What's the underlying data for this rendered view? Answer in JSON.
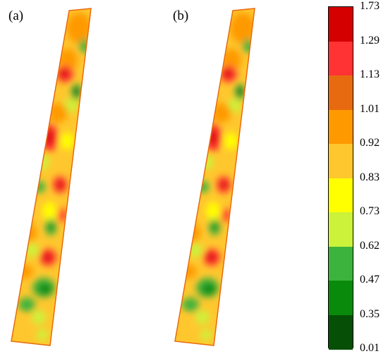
{
  "panels": [
    {
      "id": "a",
      "label": "(a)"
    },
    {
      "id": "b",
      "label": "(b)"
    }
  ],
  "legend": {
    "tick_labels": [
      "1.73",
      "1.29",
      "1.13",
      "1.01",
      "0.92",
      "0.83",
      "0.73",
      "0.62",
      "0.47",
      "0.35",
      "0.01"
    ],
    "classes": [
      {
        "from": 1.29,
        "to": 1.73,
        "color": "#d40000"
      },
      {
        "from": 1.13,
        "to": 1.29,
        "color": "#ff3333"
      },
      {
        "from": 1.01,
        "to": 1.13,
        "color": "#e86a10"
      },
      {
        "from": 0.92,
        "to": 1.01,
        "color": "#ff9900"
      },
      {
        "from": 0.83,
        "to": 0.92,
        "color": "#ffc72e"
      },
      {
        "from": 0.73,
        "to": 0.83,
        "color": "#ffff00"
      },
      {
        "from": 0.62,
        "to": 0.73,
        "color": "#ccf23a"
      },
      {
        "from": 0.47,
        "to": 0.62,
        "color": "#3cb33c"
      },
      {
        "from": 0.35,
        "to": 0.47,
        "color": "#0a8a0a"
      },
      {
        "from": 0.01,
        "to": 0.35,
        "color": "#064f06"
      }
    ]
  }
}
